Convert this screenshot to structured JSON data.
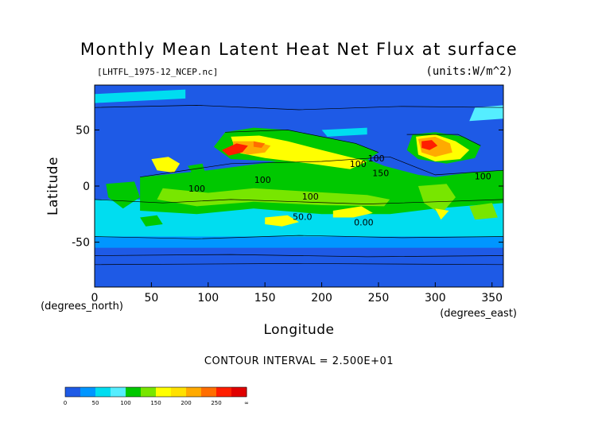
{
  "figure": {
    "title": "Monthly Mean Latent Heat Net Flux at surface",
    "file_label": "[LHTFL_1975-12_NCEP.nc]",
    "units_label": "(units:W/m^2)",
    "contour_interval_text": "CONTOUR INTERVAL = 2.500E+01",
    "x_unit_label": "(degrees_east)",
    "y_unit_label": "(degrees_north)"
  },
  "chart_data": {
    "type": "heatmap",
    "title": "Monthly Mean Latent Heat Net Flux at surface",
    "xlabel": "Longitude",
    "ylabel": "Latitude",
    "xlim": [
      0,
      360
    ],
    "ylim": [
      -90,
      90
    ],
    "xticks": [
      0,
      50,
      100,
      150,
      200,
      250,
      300,
      350
    ],
    "yticks": [
      50,
      0,
      -50
    ],
    "units": "W/m^2",
    "contour_interval": 25,
    "contour_labels": [
      {
        "text": "100",
        "lon": 232,
        "lat": 17
      },
      {
        "text": "150",
        "lon": 252,
        "lat": 9
      },
      {
        "text": "100",
        "lon": 148,
        "lat": 3
      },
      {
        "text": "100",
        "lon": 90,
        "lat": -5
      },
      {
        "text": "100",
        "lon": 190,
        "lat": -12
      },
      {
        "text": "50.0",
        "lon": 183,
        "lat": -30
      },
      {
        "text": "0.00",
        "lon": 237,
        "lat": -35
      },
      {
        "text": "100",
        "lon": 342,
        "lat": 6
      },
      {
        "text": "100",
        "lon": 248,
        "lat": 22
      }
    ],
    "colorbar": {
      "ticks": [
        "0",
        "50",
        "100",
        "150",
        "200",
        "250",
        "∞"
      ],
      "bands": [
        {
          "from": 0,
          "to": 25,
          "color": "#1e5ae6"
        },
        {
          "from": 25,
          "to": 50,
          "color": "#0096ff"
        },
        {
          "from": 50,
          "to": 75,
          "color": "#00ddf0"
        },
        {
          "from": 75,
          "to": 100,
          "color": "#55eeff"
        },
        {
          "from": 100,
          "to": 125,
          "color": "#00c800"
        },
        {
          "from": 125,
          "to": 150,
          "color": "#78e600"
        },
        {
          "from": 150,
          "to": 175,
          "color": "#ffff00"
        },
        {
          "from": 175,
          "to": 200,
          "color": "#ffe100"
        },
        {
          "from": 200,
          "to": 225,
          "color": "#ffaa00"
        },
        {
          "from": 225,
          "to": 250,
          "color": "#ff6e00"
        },
        {
          "from": 250,
          "to": 275,
          "color": "#ff1e00"
        },
        {
          "from": 275,
          "to": null,
          "color": "#e10000"
        }
      ]
    }
  }
}
